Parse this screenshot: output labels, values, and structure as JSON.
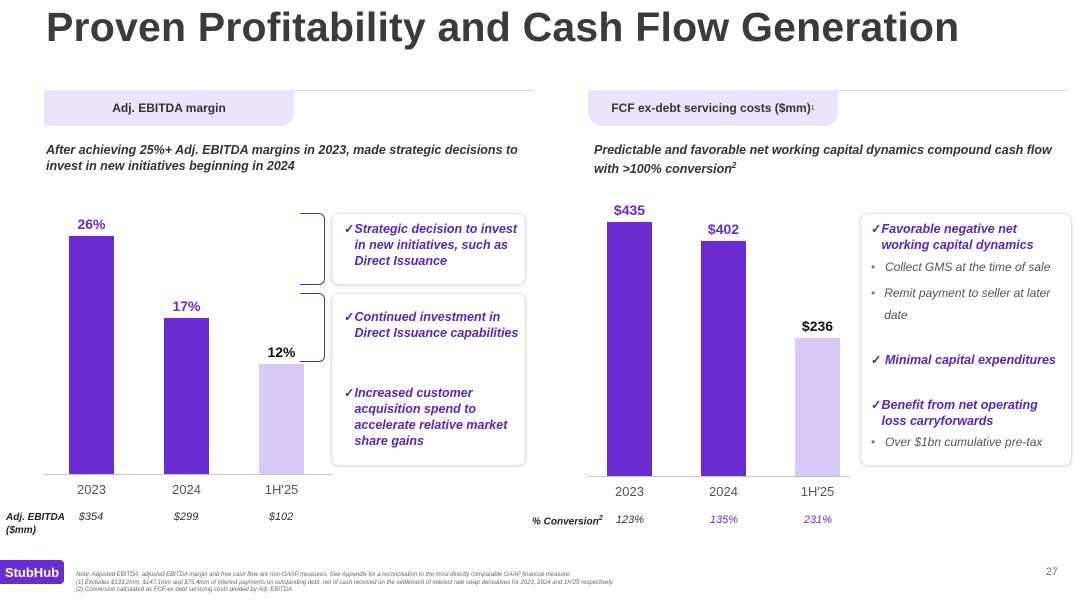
{
  "title": "Proven Profitability and Cash Flow Generation",
  "left": {
    "tab": "Adj. EBITDA margin",
    "subtitle": "After achieving 25%+ Adj. EBITDA margins in 2023, made strategic decisions to invest in new initiatives beginning in 2024",
    "chart_data": {
      "type": "bar",
      "categories": [
        "2023",
        "2024",
        "1H'25"
      ],
      "values": [
        26,
        17,
        12
      ],
      "labels": [
        "26%",
        "17%",
        "12%"
      ],
      "ylim": [
        0,
        30
      ]
    },
    "row_label_1": "Adj. EBITDA",
    "row_label_2": "($mm)",
    "row_values": [
      "$354",
      "$299",
      "$102"
    ],
    "callouts": [
      "Strategic decision to invest in new initiatives, such as Direct Issuance",
      "Continued investment in Direct Issuance capabilities",
      "Increased customer acquisition spend to accelerate relative market share gains"
    ]
  },
  "right": {
    "tab": "FCF ex-debt servicing costs ($mm)",
    "tab_sup": "1",
    "subtitle": "Predictable and favorable net working capital dynamics compound cash flow with >100% conversion",
    "subtitle_sup": "2",
    "chart_data": {
      "type": "bar",
      "categories": [
        "2023",
        "2024",
        "1H'25"
      ],
      "values": [
        435,
        402,
        236
      ],
      "labels": [
        "$435",
        "$402",
        "$236"
      ],
      "ylim": [
        0,
        480
      ]
    },
    "row_label": "% Conversion",
    "row_label_sup": "2",
    "row_values": [
      "123%",
      "135%",
      "231%"
    ],
    "callout": {
      "item1": "Favorable negative net working capital dynamics",
      "sub1a": "Collect GMS at the time of sale",
      "sub1b": "Remit payment to seller at later date",
      "item2": "Minimal capital expenditures",
      "item3": "Benefit from net operating loss carryforwards",
      "sub3a": "Over $1bn cumulative pre-tax"
    }
  },
  "footer": {
    "note": "Note: Adjusted EBITDA, adjusted EBITDA margin and free cash flow are non-GAAP measures.  See Appendix for a reconciliation to the most directly comparable GAAP financial measure.",
    "fn1": "(1)    Excludes $133.2mm, $147.1mm and $75.4mm of interest payments on outstanding debt, net of cash received on the settlement of interest rate swap derivatives for 2023, 2024 and 1H'25 respectively.",
    "fn2": "(2)    Conversion calculated as FCF-ex debt servicing costs divided by Adj. EBITDA."
  },
  "logo": "StubHub",
  "page_number": "27",
  "colors": {
    "purple": "#6a2bd1",
    "lavender": "#d8c8f5",
    "tab": "#ece4fb"
  }
}
